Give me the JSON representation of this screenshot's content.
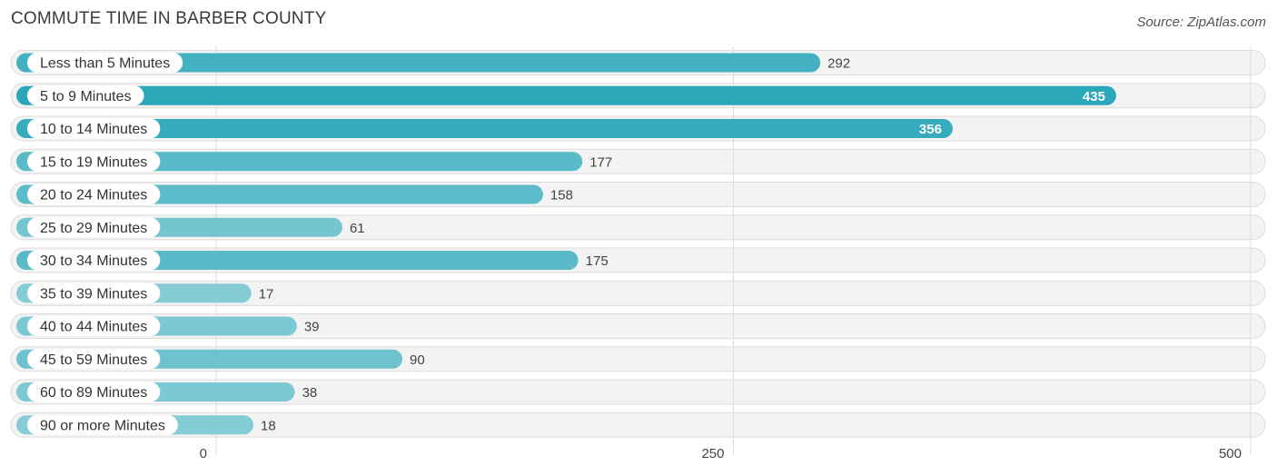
{
  "chart_data": {
    "type": "bar",
    "orientation": "horizontal",
    "title": "COMMUTE TIME IN BARBER COUNTY",
    "source": "Source: ZipAtlas.com",
    "categories": [
      "Less than 5 Minutes",
      "5 to 9 Minutes",
      "10 to 14 Minutes",
      "15 to 19 Minutes",
      "20 to 24 Minutes",
      "25 to 29 Minutes",
      "30 to 34 Minutes",
      "35 to 39 Minutes",
      "40 to 44 Minutes",
      "45 to 59 Minutes",
      "60 to 89 Minutes",
      "90 or more Minutes"
    ],
    "values": [
      292,
      435,
      356,
      177,
      158,
      61,
      175,
      17,
      39,
      90,
      38,
      18
    ],
    "xlim": [
      0,
      500
    ],
    "xticks": [
      0,
      250,
      500
    ],
    "xtick_labels": [
      "0",
      "250",
      "500"
    ],
    "xlabel": "",
    "ylabel": "",
    "grid": true,
    "colors": {
      "bar_strong": "#2aa7b9",
      "bar_light": "#86ccd6",
      "row_background": "#f3f3f3",
      "value_inside": "#ffffff",
      "value_outside": "#444444"
    }
  }
}
